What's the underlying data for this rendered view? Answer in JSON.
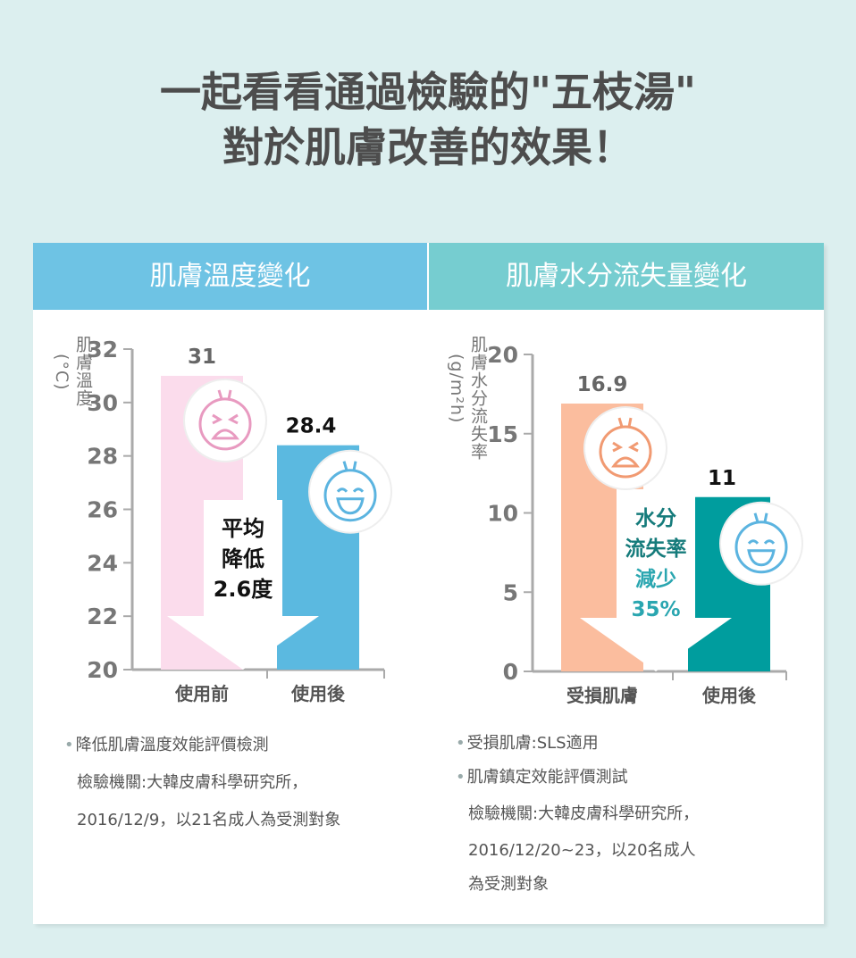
{
  "title": {
    "line1": "一起看看通過檢驗的\"五枝湯\"",
    "line2": "對於肌膚改善的效果！"
  },
  "chart_data": [
    {
      "type": "bar",
      "title": "肌膚溫度變化",
      "ylabel": "肌膚溫度",
      "yunit": "(°C)",
      "categories": [
        "使用前",
        "使用後"
      ],
      "values": [
        31,
        28.4
      ],
      "data_labels": [
        "31",
        "28.4"
      ],
      "ylim": [
        20,
        32
      ],
      "yticks": [
        20,
        22,
        24,
        26,
        28,
        30,
        32
      ],
      "colors": [
        "#fbdcec",
        "#5bb9e0"
      ],
      "header_color": "#6ec3e4",
      "annotation": [
        "平均",
        "降低",
        "2.6度"
      ]
    },
    {
      "type": "bar",
      "title": "肌膚水分流失量變化",
      "ylabel": "肌膚水分流失率",
      "yunit": "(g/m²h)",
      "categories": [
        "受損肌膚",
        "使用後"
      ],
      "values": [
        16.9,
        11
      ],
      "data_labels": [
        "16.9",
        "11"
      ],
      "ylim": [
        0,
        20
      ],
      "yticks": [
        0,
        5,
        10,
        15,
        20
      ],
      "colors": [
        "#fbbd9e",
        "#009d9e"
      ],
      "header_color": "#76cdd0",
      "annotation": [
        "水分",
        "流失率",
        "減少",
        "35%"
      ]
    }
  ],
  "notes_left": [
    "降低肌膚溫度效能評價檢測",
    "檢驗機關:大韓皮膚科學研究所，",
    "2016/12/9，以21名成人為受測對象"
  ],
  "notes_right": [
    "受損肌膚:SLS適用",
    "肌膚鎮定效能評價測試",
    "檢驗機關:大韓皮膚科學研究所，",
    "2016/12/20~23，以20名成人",
    "為受測對象"
  ]
}
